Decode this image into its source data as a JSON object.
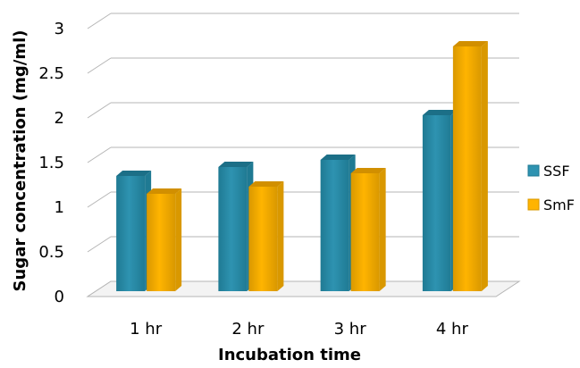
{
  "chart_data": {
    "type": "bar",
    "title": "",
    "xlabel": "Incubation time",
    "ylabel": "Sugar concentration (mg/ml)",
    "categories": [
      "1 hr",
      "2 hr",
      "3 hr",
      "4 hr"
    ],
    "series": [
      {
        "name": "SSF",
        "values": [
          1.35,
          1.45,
          1.53,
          2.03
        ],
        "color": "#2e93b1",
        "top_color": "#1c6f87",
        "side_color": "#1f7a93"
      },
      {
        "name": "SmF",
        "values": [
          1.15,
          1.23,
          1.38,
          2.8
        ],
        "color": "#ffb400",
        "top_color": "#d18f00",
        "side_color": "#d99800"
      }
    ],
    "ylim": [
      0,
      3
    ],
    "yticks": [
      "0",
      "0.5",
      "1",
      "1.5",
      "2",
      "2.5",
      "3"
    ],
    "grid": true,
    "legend_position": "right",
    "three_d": true
  }
}
